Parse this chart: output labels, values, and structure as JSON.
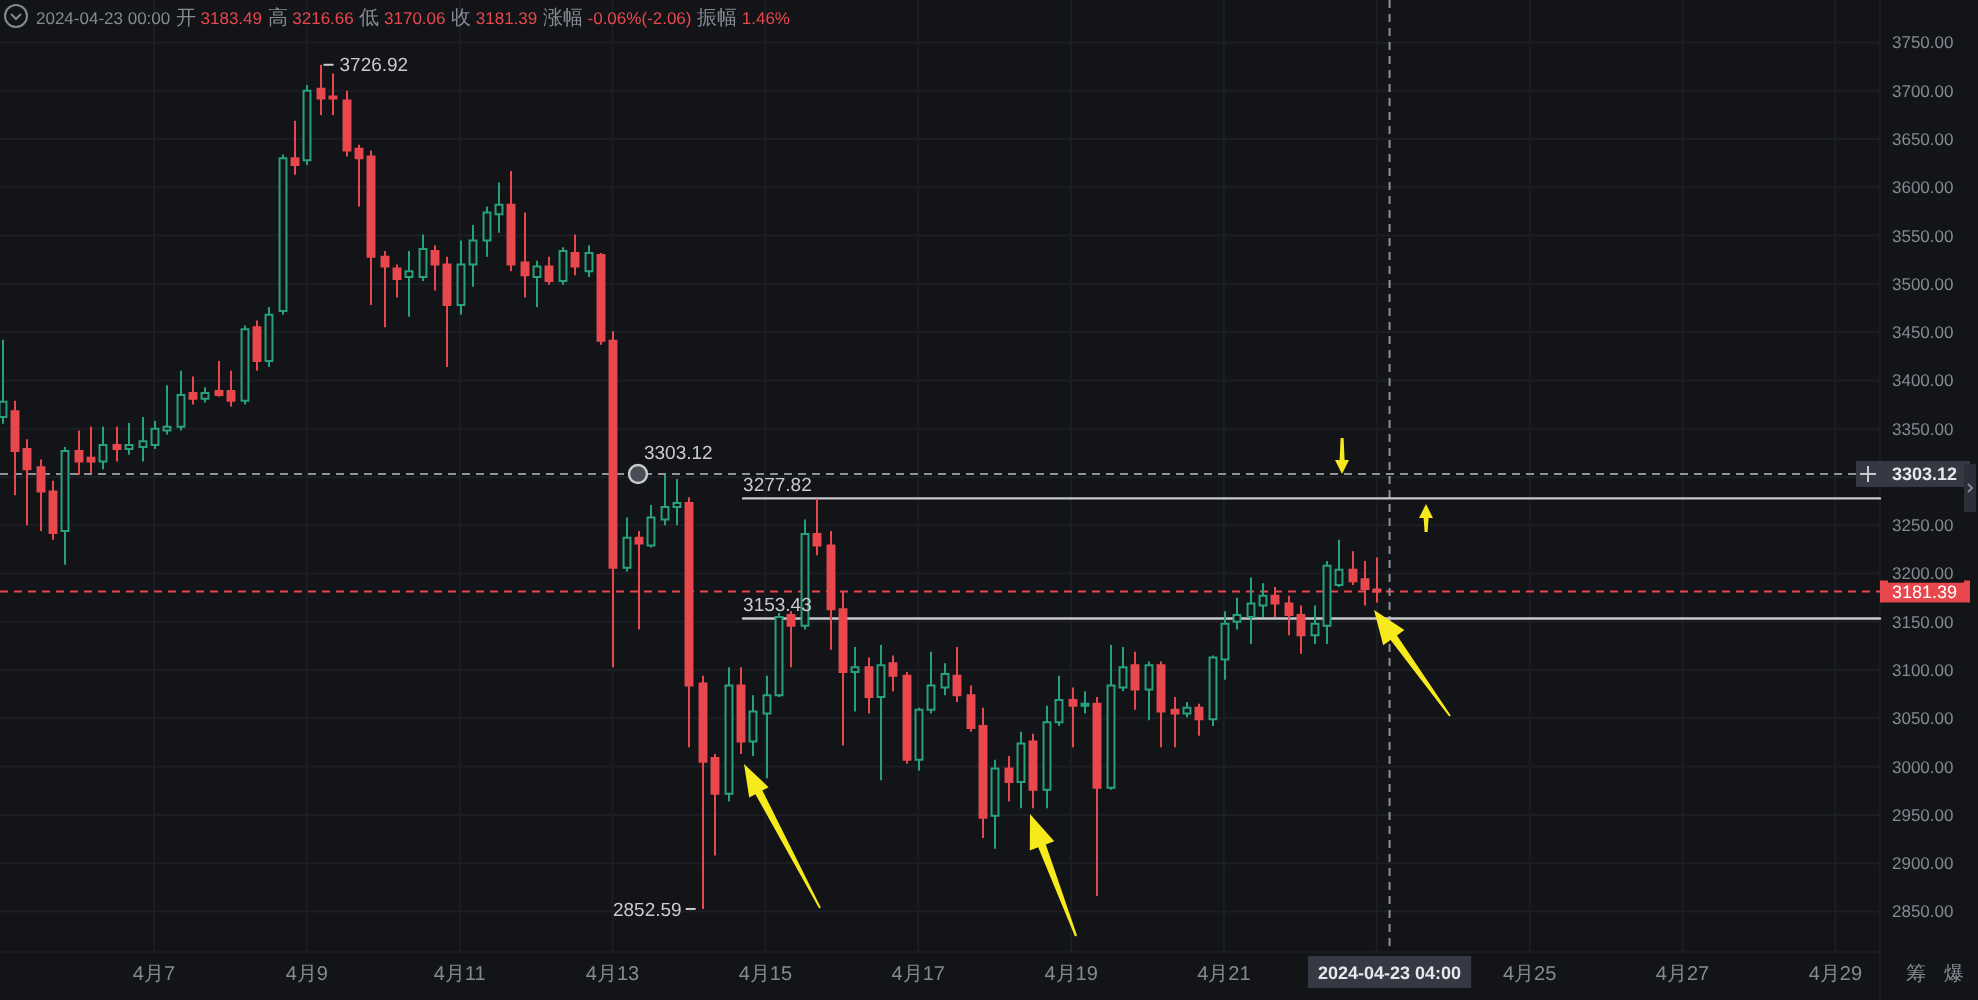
{
  "chart_data": {
    "type": "candlestick",
    "title": "2024-04-23 00:00 开 3183.49 高 3216.66 低 3170.06 收 3181.39 涨幅 -0.06%(-2.06) 振幅 1.46%",
    "x": [
      "2024-04-05T00:00",
      "2024-04-05T04:00",
      "2024-04-05T08:00",
      "2024-04-05T12:00",
      "2024-04-05T16:00",
      "2024-04-05T20:00",
      "2024-04-06T00:00",
      "2024-04-06T04:00",
      "2024-04-06T08:00",
      "2024-04-06T12:00",
      "2024-04-06T16:00",
      "2024-04-06T20:00",
      "2024-04-07T00:00",
      "2024-04-07T04:00",
      "2024-04-07T08:00",
      "2024-04-07T12:00",
      "2024-04-07T16:00",
      "2024-04-07T20:00",
      "2024-04-08T00:00",
      "2024-04-08T04:00",
      "2024-04-08T08:00",
      "2024-04-08T12:00",
      "2024-04-08T16:00",
      "2024-04-08T20:00",
      "2024-04-09T00:00",
      "2024-04-09T04:00",
      "2024-04-09T08:00",
      "2024-04-09T12:00",
      "2024-04-09T16:00",
      "2024-04-09T20:00",
      "2024-04-10T00:00",
      "2024-04-10T04:00",
      "2024-04-10T08:00",
      "2024-04-10T12:00",
      "2024-04-10T16:00",
      "2024-04-10T20:00",
      "2024-04-11T00:00",
      "2024-04-11T04:00",
      "2024-04-11T08:00",
      "2024-04-11T12:00",
      "2024-04-11T16:00",
      "2024-04-11T20:00",
      "2024-04-12T00:00",
      "2024-04-12T04:00",
      "2024-04-12T08:00",
      "2024-04-12T12:00",
      "2024-04-12T16:00",
      "2024-04-12T20:00",
      "2024-04-13T00:00",
      "2024-04-13T04:00",
      "2024-04-13T08:00",
      "2024-04-13T12:00",
      "2024-04-13T16:00",
      "2024-04-13T20:00",
      "2024-04-14T00:00",
      "2024-04-14T04:00",
      "2024-04-14T08:00",
      "2024-04-14T12:00",
      "2024-04-14T16:00",
      "2024-04-14T20:00",
      "2024-04-15T00:00",
      "2024-04-15T04:00",
      "2024-04-15T08:00",
      "2024-04-15T12:00",
      "2024-04-15T16:00",
      "2024-04-15T20:00",
      "2024-04-16T00:00",
      "2024-04-16T04:00",
      "2024-04-16T08:00",
      "2024-04-16T12:00",
      "2024-04-16T16:00",
      "2024-04-16T20:00",
      "2024-04-17T00:00",
      "2024-04-17T04:00",
      "2024-04-17T08:00",
      "2024-04-17T12:00",
      "2024-04-17T16:00",
      "2024-04-17T20:00",
      "2024-04-18T00:00",
      "2024-04-18T04:00",
      "2024-04-18T08:00",
      "2024-04-18T12:00",
      "2024-04-18T16:00",
      "2024-04-18T20:00",
      "2024-04-19T00:00",
      "2024-04-19T04:00",
      "2024-04-19T08:00",
      "2024-04-19T12:00",
      "2024-04-19T16:00",
      "2024-04-19T20:00",
      "2024-04-20T00:00",
      "2024-04-20T04:00",
      "2024-04-20T08:00",
      "2024-04-20T12:00",
      "2024-04-20T16:00",
      "2024-04-20T20:00",
      "2024-04-21T00:00",
      "2024-04-21T04:00",
      "2024-04-21T08:00",
      "2024-04-21T12:00",
      "2024-04-21T16:00",
      "2024-04-21T20:00",
      "2024-04-22T00:00",
      "2024-04-22T04:00",
      "2024-04-22T08:00",
      "2024-04-22T12:00",
      "2024-04-22T16:00",
      "2024-04-22T20:00",
      "2024-04-23T00:00"
    ],
    "ohlc": [
      [
        3362,
        3442,
        3355,
        3378
      ],
      [
        3368,
        3379,
        3281,
        3327
      ],
      [
        3329,
        3339,
        3250,
        3308
      ],
      [
        3310,
        3318,
        3244,
        3285
      ],
      [
        3285,
        3296,
        3235,
        3242
      ],
      [
        3244,
        3331,
        3209,
        3327
      ],
      [
        3327,
        3348,
        3302,
        3316
      ],
      [
        3320,
        3352,
        3304,
        3316
      ],
      [
        3316,
        3352,
        3308,
        3333
      ],
      [
        3333,
        3352,
        3316,
        3329
      ],
      [
        3329,
        3356,
        3323,
        3333
      ],
      [
        3331,
        3362,
        3316,
        3337
      ],
      [
        3333,
        3358,
        3329,
        3350
      ],
      [
        3348,
        3395,
        3344,
        3352
      ],
      [
        3352,
        3410,
        3348,
        3385
      ],
      [
        3387,
        3404,
        3375,
        3381
      ],
      [
        3381,
        3393,
        3377,
        3387
      ],
      [
        3389,
        3420,
        3383,
        3385
      ],
      [
        3389,
        3410,
        3373,
        3379
      ],
      [
        3379,
        3457,
        3375,
        3453
      ],
      [
        3455,
        3462,
        3410,
        3420
      ],
      [
        3420,
        3476,
        3414,
        3468
      ],
      [
        3472,
        3634,
        3468,
        3630
      ],
      [
        3630,
        3669,
        3613,
        3623
      ],
      [
        3628,
        3706,
        3623,
        3700
      ],
      [
        3702,
        3726.92,
        3675,
        3692
      ],
      [
        3694,
        3718,
        3675,
        3692
      ],
      [
        3690,
        3700,
        3632,
        3638
      ],
      [
        3640,
        3644,
        3580,
        3630
      ],
      [
        3632,
        3638,
        3478,
        3528
      ],
      [
        3528,
        3534,
        3455,
        3518
      ],
      [
        3516,
        3520,
        3486,
        3505
      ],
      [
        3507,
        3534,
        3466,
        3513
      ],
      [
        3507,
        3551,
        3503,
        3536
      ],
      [
        3534,
        3540,
        3493,
        3520
      ],
      [
        3520,
        3528,
        3414,
        3478
      ],
      [
        3478,
        3545,
        3468,
        3520
      ],
      [
        3520,
        3561,
        3497,
        3545
      ],
      [
        3545,
        3580,
        3528,
        3574
      ],
      [
        3572,
        3605,
        3553,
        3582
      ],
      [
        3582,
        3617,
        3513,
        3520
      ],
      [
        3522,
        3574,
        3486,
        3509
      ],
      [
        3507,
        3524,
        3476,
        3518
      ],
      [
        3518,
        3528,
        3499,
        3503
      ],
      [
        3503,
        3538,
        3499,
        3534
      ],
      [
        3532,
        3551,
        3509,
        3518
      ],
      [
        3513,
        3540,
        3507,
        3532
      ],
      [
        3530,
        3532,
        3437,
        3441
      ],
      [
        3441,
        3451,
        3103,
        3206
      ],
      [
        3206,
        3258,
        3202,
        3237
      ],
      [
        3237,
        3244,
        3142,
        3231
      ],
      [
        3229,
        3271,
        3227,
        3258
      ],
      [
        3256,
        3302,
        3250,
        3269
      ],
      [
        3269,
        3298,
        3250,
        3273
      ],
      [
        3273,
        3279,
        3020,
        3084
      ],
      [
        3086,
        3094,
        2852.59,
        3005
      ],
      [
        3009,
        3013,
        2908,
        2972
      ],
      [
        2972,
        3103,
        2964,
        3084
      ],
      [
        3084,
        3103,
        3013,
        3026
      ],
      [
        3026,
        3074,
        3011,
        3057
      ],
      [
        3055,
        3094,
        2988,
        3074
      ],
      [
        3074,
        3159,
        3072,
        3155
      ],
      [
        3157,
        3161,
        3103,
        3146
      ],
      [
        3146,
        3256,
        3142,
        3241
      ],
      [
        3241,
        3277.82,
        3219,
        3229
      ],
      [
        3229,
        3244,
        3121,
        3163
      ],
      [
        3163,
        3182,
        3022,
        3098
      ],
      [
        3098,
        3124,
        3057,
        3103
      ],
      [
        3103,
        3113,
        3055,
        3072
      ],
      [
        3072,
        3126,
        2986,
        3105
      ],
      [
        3107,
        3115,
        3078,
        3094
      ],
      [
        3094,
        3098,
        3003,
        3007
      ],
      [
        3007,
        3061,
        2996,
        3059
      ],
      [
        3059,
        3119,
        3055,
        3084
      ],
      [
        3082,
        3107,
        3074,
        3096
      ],
      [
        3094,
        3124,
        3067,
        3074
      ],
      [
        3074,
        3084,
        3036,
        3040
      ],
      [
        3042,
        3061,
        2926,
        2947
      ],
      [
        2949,
        3007,
        2915,
        2998
      ],
      [
        2998,
        3011,
        2964,
        2984
      ],
      [
        2984,
        3036,
        2957,
        3024
      ],
      [
        3026,
        3034,
        2957,
        2976
      ],
      [
        2976,
        3063,
        2957,
        3046
      ],
      [
        3046,
        3094,
        3042,
        3069
      ],
      [
        3069,
        3082,
        3020,
        3063
      ],
      [
        3063,
        3078,
        3055,
        3065
      ],
      [
        3065,
        3072,
        2866,
        2978
      ],
      [
        2978,
        3126,
        2976,
        3084
      ],
      [
        3082,
        3124,
        3078,
        3103
      ],
      [
        3105,
        3119,
        3059,
        3080
      ],
      [
        3080,
        3109,
        3048,
        3105
      ],
      [
        3105,
        3109,
        3020,
        3057
      ],
      [
        3059,
        3072,
        3020,
        3055
      ],
      [
        3055,
        3067,
        3051,
        3061
      ],
      [
        3061,
        3065,
        3032,
        3049
      ],
      [
        3049,
        3115,
        3042,
        3113
      ],
      [
        3111,
        3161,
        3090,
        3148
      ],
      [
        3150,
        3175,
        3142,
        3157
      ],
      [
        3155,
        3196,
        3127,
        3169
      ],
      [
        3167,
        3190,
        3155,
        3177
      ],
      [
        3177,
        3186,
        3155,
        3169
      ],
      [
        3169,
        3177,
        3136,
        3157
      ],
      [
        3157,
        3167,
        3117,
        3136
      ],
      [
        3136,
        3167,
        3127,
        3148
      ],
      [
        3146,
        3213,
        3127,
        3208
      ],
      [
        3188,
        3235,
        3186,
        3204
      ],
      [
        3204,
        3223,
        3188,
        3192
      ],
      [
        3194,
        3213,
        3167,
        3184
      ],
      [
        3183.49,
        3216.66,
        3170.06,
        3181.39
      ]
    ],
    "colors": [
      "#26a17b",
      "#e8484d",
      "#e8484d",
      "#e8484d",
      "#e8484d",
      "#26a17b",
      "#e8484d",
      "#e8484d",
      "#26a17b",
      "#e8484d",
      "#26a17b",
      "#26a17b",
      "#26a17b",
      "#26a17b",
      "#26a17b",
      "#e8484d",
      "#26a17b",
      "#e8484d",
      "#e8484d",
      "#26a17b",
      "#e8484d",
      "#26a17b",
      "#26a17b",
      "#e8484d",
      "#26a17b",
      "#e8484d",
      "#e8484d",
      "#e8484d",
      "#e8484d",
      "#e8484d",
      "#e8484d",
      "#e8484d",
      "#26a17b",
      "#26a17b",
      "#e8484d",
      "#e8484d",
      "#26a17b",
      "#26a17b",
      "#26a17b",
      "#26a17b",
      "#e8484d",
      "#e8484d",
      "#26a17b",
      "#e8484d",
      "#26a17b",
      "#e8484d",
      "#26a17b",
      "#e8484d",
      "#e8484d",
      "#26a17b",
      "#e8484d",
      "#26a17b",
      "#26a17b",
      "#26a17b",
      "#e8484d",
      "#e8484d",
      "#e8484d",
      "#26a17b",
      "#e8484d",
      "#26a17b",
      "#26a17b",
      "#26a17b",
      "#e8484d",
      "#26a17b",
      "#e8484d",
      "#e8484d",
      "#e8484d",
      "#26a17b",
      "#e8484d",
      "#26a17b",
      "#e8484d",
      "#e8484d",
      "#26a17b",
      "#26a17b",
      "#26a17b",
      "#e8484d",
      "#e8484d",
      "#e8484d",
      "#26a17b",
      "#e8484d",
      "#26a17b",
      "#e8484d",
      "#26a17b",
      "#26a17b",
      "#e8484d",
      "#26a17b",
      "#e8484d",
      "#26a17b",
      "#26a17b",
      "#e8484d",
      "#26a17b",
      "#e8484d",
      "#e8484d",
      "#26a17b",
      "#e8484d",
      "#26a17b",
      "#26a17b",
      "#26a17b",
      "#26a17b",
      "#26a17b",
      "#e8484d",
      "#e8484d",
      "#e8484d",
      "#26a17b",
      "#26a17b",
      "#26a17b",
      "#e8484d",
      "#e8484d",
      "#e8484d"
    ],
    "series": [
      {
        "type": "line",
        "x": [
          "2024-04-14T17:00",
          "2024-04-29T14:00"
        ],
        "values": [
          3277.82,
          3277.82
        ],
        "color": "#c8c9cc"
      },
      {
        "type": "line",
        "x": [
          "2024-04-14T17:00",
          "2024-04-29T14:00"
        ],
        "values": [
          3153.43,
          3153.43
        ],
        "color": "#c8c9cc"
      }
    ],
    "xlim": [
      "2024-04-04T23:40",
      "2024-04-29T14:00"
    ],
    "ylim": [
      2808,
      3794
    ],
    "xticks": [
      {
        "value": "2024-04-07",
        "label": "4月7"
      },
      {
        "value": "2024-04-09",
        "label": "4月9"
      },
      {
        "value": "2024-04-11",
        "label": "4月11"
      },
      {
        "value": "2024-04-13",
        "label": "4月13"
      },
      {
        "value": "2024-04-15",
        "label": "4月15"
      },
      {
        "value": "2024-04-17",
        "label": "4月17"
      },
      {
        "value": "2024-04-19",
        "label": "4月19"
      },
      {
        "value": "2024-04-21",
        "label": "4月21"
      },
      {
        "value": "2024-04-23",
        "label": null
      },
      {
        "value": "2024-04-25",
        "label": "4月25"
      },
      {
        "value": "2024-04-27",
        "label": "4月27"
      },
      {
        "value": "2024-04-29",
        "label": "4月29"
      }
    ],
    "yticks": [
      {
        "value": 2850,
        "label": "2850.00"
      },
      {
        "value": 2900,
        "label": "2900.00"
      },
      {
        "value": 2950,
        "label": "2950.00"
      },
      {
        "value": 3000,
        "label": "3000.00"
      },
      {
        "value": 3050,
        "label": "3050.00"
      },
      {
        "value": 3100,
        "label": "3100.00"
      },
      {
        "value": 3150,
        "label": "3150.00"
      },
      {
        "value": 3200,
        "label": "3200.00"
      },
      {
        "value": 3250,
        "label": "3250.00"
      },
      {
        "value": 3300,
        "label": null
      },
      {
        "value": 3350,
        "label": "3350.00"
      },
      {
        "value": 3400,
        "label": "3400.00"
      },
      {
        "value": 3450,
        "label": "3450.00"
      },
      {
        "value": 3500,
        "label": "3500.00"
      },
      {
        "value": 3550,
        "label": "3550.00"
      },
      {
        "value": 3600,
        "label": "3600.00"
      },
      {
        "value": 3650,
        "label": "3650.00"
      },
      {
        "value": 3700,
        "label": "3700.00"
      },
      {
        "value": 3750,
        "label": "3750.00"
      }
    ],
    "grid": true,
    "ref_lines": [
      {
        "axis": "y",
        "value": 3303.12,
        "label": "3303.12",
        "color": "#8f9299",
        "line_style": "dashed"
      },
      {
        "axis": "y",
        "value": 3181.39,
        "label": "3181.39",
        "color": "#e8484d",
        "line_style": "dashed"
      },
      {
        "axis": "x",
        "value": "2024-04-23T04:00",
        "label": "2024-04-23 04:00",
        "color": "#8f9299",
        "line_style": "dashed"
      }
    ],
    "annotations": [
      {
        "text": "3726.92",
        "x": "2024-04-09T04:00",
        "y": 3726.92
      },
      {
        "text": "2852.59",
        "x": "2024-04-14T04:00",
        "y": 2852.59
      },
      {
        "text": "3303.12",
        "x": "2024-04-13T08:00",
        "y": 3303.12
      },
      {
        "text": "3277.82",
        "x": "2024-04-14T17:00",
        "y": 3277.82
      },
      {
        "text": "3153.43",
        "x": "2024-04-14T17:00",
        "y": 3153.43
      },
      "筹",
      "爆"
    ]
  }
}
